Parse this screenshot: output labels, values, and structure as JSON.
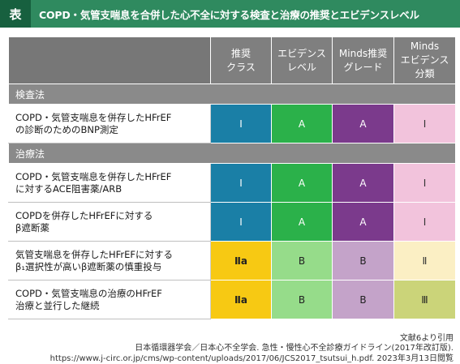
{
  "title": {
    "tag": "表",
    "text": "COPD・気管支喘息を合併した心不全に対する検査と治療の推奨とエビデンスレベル"
  },
  "headers": {
    "col1": "推奨\nクラス",
    "col2": "エビデンス\nレベル",
    "col3": "Minds推奨\nグレード",
    "col4": "Minds\nエビデンス\n分類"
  },
  "sections": {
    "exam": "検査法",
    "treatment": "治療法"
  },
  "rows": [
    {
      "label": "COPD・気管支喘息を併存したHFrEF\nの診断のためのBNP測定",
      "values": [
        "I",
        "A",
        "A",
        "I"
      ]
    },
    {
      "label": "COPD・気管支喘息を併存したHFrEF\nに対するACE阻害薬/ARB",
      "values": [
        "I",
        "A",
        "A",
        "I"
      ]
    },
    {
      "label": "COPDを併存したHFrEFに対する\nβ遮断薬",
      "values": [
        "I",
        "A",
        "A",
        "I"
      ]
    },
    {
      "label": "気管支喘息を併存したHFrEFに対する\nβ₁選択性が高いβ遮断薬の慎重投与",
      "values": [
        "Ⅱa",
        "B",
        "B",
        "Ⅱ"
      ]
    },
    {
      "label": "COPD・気管支喘息の治療のHFrEF\n治療と並行した継続",
      "values": [
        "Ⅱa",
        "B",
        "B",
        "Ⅲ"
      ]
    }
  ],
  "colors": {
    "title_bg": "#2f8a5f",
    "header_bg": "#7f7f7f",
    "class_I": "#1a7fa6",
    "level_A": "#2bb14a",
    "grade_A": "#7b3a8c",
    "minds_I": "#f2c3dc",
    "class_IIa": "#f7c913",
    "level_B": "#96dc8a",
    "grade_B": "#c4a3c9",
    "minds_II": "#fbefc4",
    "minds_III": "#cbd479"
  },
  "footer": {
    "source": "文献6より引用",
    "citation": "日本循環器学会／日本心不全学会. 急性・慢性心不全診療ガイドライン(2017年改訂版).",
    "url": "https://www.j-circ.or.jp/cms/wp-content/uploads/2017/06/JCS2017_tsutsui_h.pdf. 2023年3月13日閲覧"
  }
}
